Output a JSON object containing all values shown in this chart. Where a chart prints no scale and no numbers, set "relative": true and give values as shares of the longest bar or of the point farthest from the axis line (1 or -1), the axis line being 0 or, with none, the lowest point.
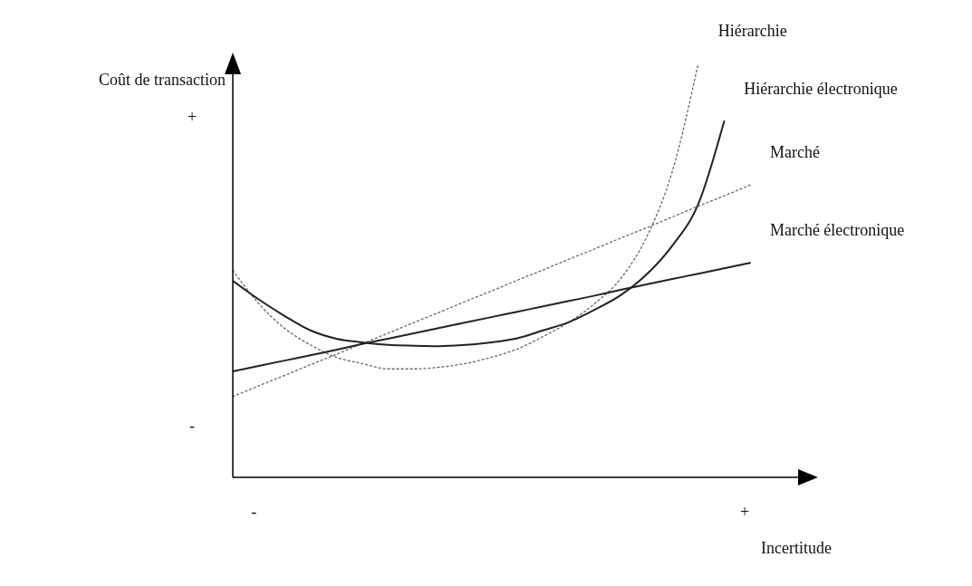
{
  "chart_data": {
    "type": "line",
    "relative": true,
    "xlabel": "Incertitude",
    "ylabel": "Coût de transaction",
    "categories": [
      null,
      null,
      null,
      null,
      null,
      null,
      null,
      null,
      null,
      null,
      null,
      null,
      null,
      null,
      null,
      null,
      null,
      null,
      null,
      null,
      null
    ],
    "annotations": [
      "+",
      "-",
      "-",
      "+"
    ],
    "marker": "none",
    "series": [
      {
        "name": "Hiérarchie",
        "color": "#666666",
        "line_style": "dotted",
        "values": [
          0.5,
          0.42,
          0.36,
          0.32,
          0.29,
          0.275,
          0.262,
          0.262,
          0.266,
          0.275,
          0.29,
          0.31,
          0.34,
          0.375,
          0.42,
          0.48,
          0.58,
          0.74,
          1.0,
          null,
          null
        ]
      },
      {
        "name": "Hiérarchie électronique",
        "color": "#222222",
        "line_style": "solid",
        "values": [
          0.475,
          0.43,
          0.39,
          0.355,
          0.335,
          0.326,
          0.32,
          0.318,
          0.317,
          0.32,
          0.326,
          0.336,
          0.355,
          0.375,
          0.405,
          0.44,
          0.49,
          0.56,
          0.66,
          0.86,
          null
        ]
      },
      {
        "name": "Marché",
        "color": "#666666",
        "line_style": "dotted",
        "values": [
          0.195,
          0.221,
          0.246,
          0.272,
          0.297,
          0.323,
          0.348,
          0.374,
          0.399,
          0.425,
          0.45,
          0.476,
          0.501,
          0.527,
          0.552,
          0.578,
          0.603,
          0.629,
          0.655,
          0.68,
          0.706
        ]
      },
      {
        "name": "Marché électronique",
        "color": "#222222",
        "line_style": "solid",
        "values": [
          0.256,
          0.269,
          0.282,
          0.295,
          0.308,
          0.322,
          0.335,
          0.348,
          0.361,
          0.374,
          0.387,
          0.4,
          0.413,
          0.426,
          0.439,
          0.453,
          0.466,
          0.479,
          0.492,
          0.505,
          0.518
        ]
      }
    ]
  }
}
